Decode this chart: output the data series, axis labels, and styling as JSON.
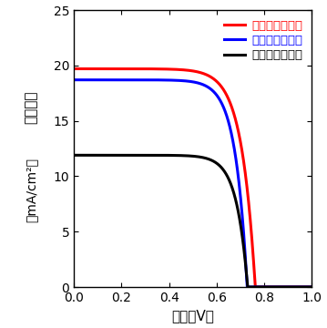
{
  "title": "",
  "xlabel": "電圧（V）",
  "ylabel_line1": "電流密度",
  "ylabel_line2": "（mA/cm²）",
  "xlim": [
    0,
    1
  ],
  "ylim": [
    0,
    25
  ],
  "xticks": [
    0,
    0.2,
    0.4,
    0.6,
    0.8,
    1
  ],
  "yticks": [
    0,
    5,
    10,
    15,
    20,
    25
  ],
  "curves": [
    {
      "label": "逆構造（厕膜）",
      "color": "#ff0000",
      "jsc": 19.7,
      "voc": 0.762,
      "n_ideality": 2.2
    },
    {
      "label": "順構造（厕膜）",
      "color": "#0000ff",
      "jsc": 18.7,
      "voc": 0.728,
      "n_ideality": 1.9
    },
    {
      "label": "順構造（薄膜）",
      "color": "#000000",
      "jsc": 11.9,
      "voc": 0.73,
      "n_ideality": 1.8
    }
  ],
  "legend_colors": [
    "#ff0000",
    "#0000ff",
    "#000000"
  ],
  "legend_loc": "upper right",
  "linewidth": 2.2,
  "background_color": "#ffffff",
  "spine_visible": true,
  "tick_fontsize": 10,
  "label_fontsize": 11,
  "legend_fontsize": 9.5
}
